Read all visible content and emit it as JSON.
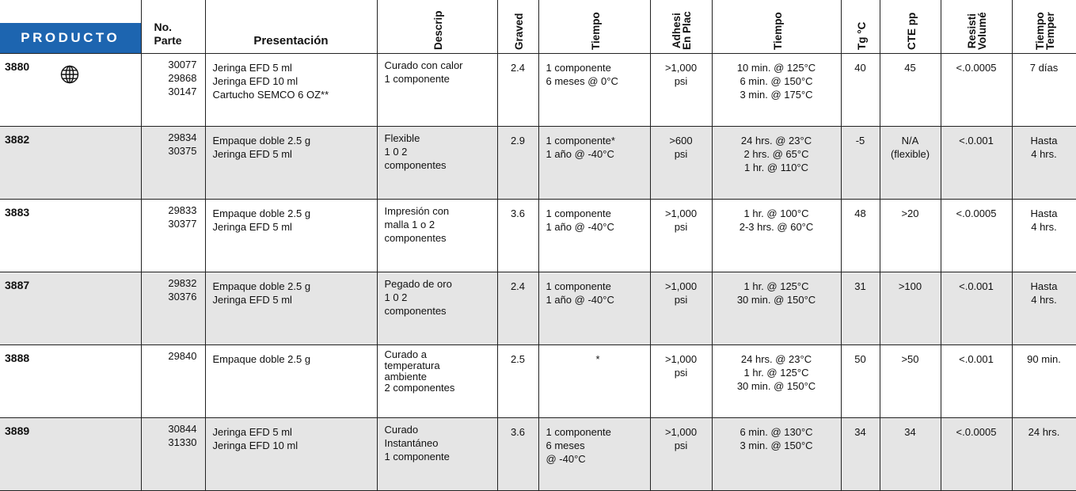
{
  "header": {
    "producto": "PRODUCTO",
    "no_parte_1": "No.",
    "no_parte_2": "Parte",
    "presentacion": "Presentación",
    "descripcion": "Descrip",
    "gravedad": "Graved",
    "tiempo_vida": "Tiempo",
    "adhesion_1": "Adhesi",
    "adhesion_2": "En Plac",
    "tiempo_curado": "Tiempo",
    "tg": "Tg °C",
    "cte": "CTE pp",
    "resistividad_1": "Resisti",
    "resistividad_2": "Volumé",
    "tiempo_temp_1": "Tiempo",
    "tiempo_temp_2": "Temper"
  },
  "rows": [
    {
      "producto": "3880",
      "globe_icon": "globe-icon",
      "partes": [
        "30077",
        "29868",
        "30147"
      ],
      "presentacion": [
        "Jeringa EFD 5 ml",
        "Jeringa EFD 10 ml",
        "Cartucho SEMCO 6 OZ**"
      ],
      "descripcion": [
        "Curado con calor",
        "1 componente"
      ],
      "gravedad": "2.4",
      "tiempo": [
        "1 componente",
        "6 meses @ 0°C"
      ],
      "adhesion": [
        ">1,000",
        "psi"
      ],
      "curado": [
        "10 min. @ 125°C",
        "6 min. @ 150°C",
        "3 min. @ 175°C"
      ],
      "tg": "40",
      "cte": [
        "45"
      ],
      "resistividad": "<.0.0005",
      "tiempo_temp": [
        "7 días"
      ]
    },
    {
      "producto": "3882",
      "partes": [
        "29834",
        "30375"
      ],
      "presentacion": [
        "Empaque doble 2.5 g",
        "Jeringa EFD 5 ml"
      ],
      "descripcion": [
        "Flexible",
        "1 0 2",
        "componentes"
      ],
      "gravedad": "2.9",
      "tiempo": [
        "1 componente*",
        "1 año @  -40°C"
      ],
      "adhesion": [
        ">600",
        "psi"
      ],
      "curado": [
        "24 hrs. @ 23°C",
        "2 hrs. @ 65°C",
        "1 hr. @ 110°C"
      ],
      "tg": "-5",
      "cte": [
        "N/A",
        "(flexible)"
      ],
      "resistividad": "<.0.001",
      "tiempo_temp": [
        "Hasta",
        "4 hrs."
      ]
    },
    {
      "producto": "3883",
      "partes": [
        "29833",
        "30377"
      ],
      "presentacion": [
        "Empaque doble 2.5 g",
        "Jeringa EFD 5 ml"
      ],
      "descripcion": [
        "Impresión con",
        "malla 1 o 2",
        "componentes"
      ],
      "gravedad": "3.6",
      "tiempo": [
        "1 componente",
        "1 año  @  -40°C"
      ],
      "adhesion": [
        ">1,000",
        "psi"
      ],
      "curado": [
        "1 hr. @ 100°C",
        "2-3 hrs. @ 60°C"
      ],
      "tg": "48",
      "cte": [
        ">20"
      ],
      "resistividad": "<.0.0005",
      "tiempo_temp": [
        "Hasta",
        "4 hrs."
      ]
    },
    {
      "producto": "3887",
      "partes": [
        "29832",
        "30376"
      ],
      "presentacion": [
        "Empaque doble 2.5 g",
        "Jeringa EFD 5 ml"
      ],
      "descripcion": [
        "Pegado de oro",
        "1 0  2",
        "componentes"
      ],
      "gravedad": "2.4",
      "tiempo": [
        "1 componente",
        "1 año @  -40°C"
      ],
      "adhesion": [
        ">1,000",
        "psi"
      ],
      "curado": [
        "1 hr. @ 125°C",
        "30 min. @ 150°C"
      ],
      "tg": "31",
      "cte": [
        ">100"
      ],
      "resistividad": "<.0.001",
      "tiempo_temp": [
        "Hasta",
        "4 hrs."
      ]
    },
    {
      "producto": "3888",
      "partes": [
        "29840"
      ],
      "presentacion": [
        "Empaque doble 2.5 g"
      ],
      "descripcion": [
        "Curado a",
        "temperatura",
        "ambiente",
        "2 componentes"
      ],
      "gravedad": "2.5",
      "tiempo": [
        "*"
      ],
      "adhesion": [
        ">1,000",
        "psi"
      ],
      "curado": [
        "24 hrs. @ 23°C",
        "1 hr. @ 125°C",
        "30 min. @ 150°C"
      ],
      "tg": "50",
      "cte": [
        ">50"
      ],
      "resistividad": "<.0.001",
      "tiempo_temp": [
        "90 min."
      ]
    },
    {
      "producto": "3889",
      "partes": [
        "30844",
        "31330"
      ],
      "presentacion": [
        "Jeringa EFD 5 ml",
        "Jeringa EFD 10 ml"
      ],
      "descripcion": [
        "Curado",
        "Instantáneo",
        "1 componente"
      ],
      "gravedad": "3.6",
      "tiempo": [
        "1 componente",
        "6 meses",
        "@ -40°C"
      ],
      "adhesion": [
        ">1,000",
        "psi"
      ],
      "curado": [
        "6 min. @ 130°C",
        "3 min. @ 150°C"
      ],
      "tg": "34",
      "cte": [
        "34"
      ],
      "resistividad": "<.0.0005",
      "tiempo_temp": [
        "24 hrs."
      ]
    }
  ],
  "colors": {
    "header_tab": "#1d65b0",
    "row_shade": "#e5e5e5"
  }
}
